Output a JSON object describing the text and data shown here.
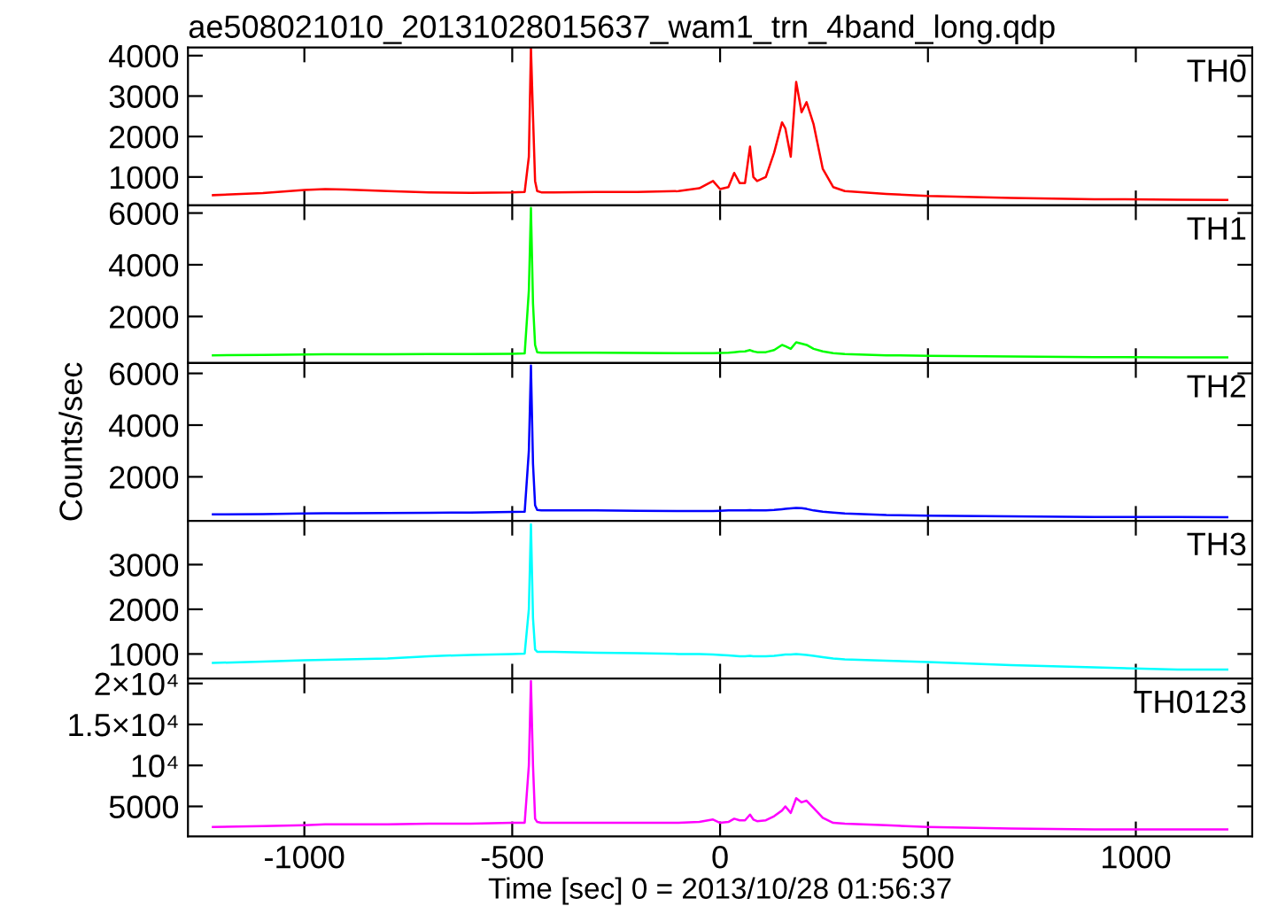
{
  "chart_data": [
    {
      "type": "line",
      "title": "ae508021010_20131028015637_wam1_trn_4band_long.qdp",
      "annotations": [
        "TH0"
      ],
      "xlim": [
        -1280,
        1280
      ],
      "xticks": [
        -1000,
        -500,
        0,
        500,
        1000
      ],
      "ylim": [
        300,
        4200
      ],
      "yticks": [
        1000,
        2000,
        3000,
        4000
      ],
      "tick_labels": "y",
      "x": [
        -1220,
        -1100,
        -1000,
        -950,
        -900,
        -800,
        -700,
        -600,
        -500,
        -470,
        -460,
        -455,
        -450,
        -445,
        -440,
        -430,
        -400,
        -300,
        -200,
        -100,
        -50,
        -17,
        0,
        20,
        34,
        47,
        60,
        72,
        80,
        89,
        110,
        130,
        149,
        157,
        170,
        183,
        196,
        208,
        225,
        247,
        272,
        300,
        400,
        500,
        700,
        900,
        1100,
        1220
      ],
      "series": [
        {
          "color": "#ff0000",
          "values": [
            550,
            600,
            680,
            700,
            690,
            650,
            620,
            610,
            620,
            630,
            1500,
            4200,
            2500,
            900,
            650,
            620,
            620,
            630,
            630,
            650,
            720,
            900,
            700,
            750,
            1100,
            850,
            850,
            1750,
            1000,
            900,
            1000,
            1600,
            2350,
            2200,
            1500,
            3350,
            2600,
            2850,
            2300,
            1200,
            750,
            650,
            580,
            530,
            480,
            450,
            440,
            430
          ]
        }
      ]
    },
    {
      "type": "line",
      "annotations": [
        "TH1"
      ],
      "xlim": [
        -1280,
        1280
      ],
      "xticks": [
        -1000,
        -500,
        0,
        500,
        1000
      ],
      "ylim": [
        200,
        6300
      ],
      "yticks": [
        2000,
        4000,
        6000
      ],
      "tick_labels": "y",
      "x": [
        -1220,
        -1100,
        -1000,
        -950,
        -900,
        -800,
        -700,
        -600,
        -500,
        -470,
        -460,
        -455,
        -450,
        -445,
        -440,
        -430,
        -400,
        -300,
        -200,
        -100,
        -50,
        -17,
        0,
        20,
        34,
        47,
        60,
        72,
        80,
        89,
        110,
        130,
        149,
        157,
        170,
        183,
        196,
        208,
        225,
        247,
        272,
        300,
        400,
        500,
        700,
        900,
        1100,
        1220
      ],
      "series": [
        {
          "color": "#00ff00",
          "values": [
            500,
            510,
            530,
            540,
            540,
            540,
            550,
            550,
            560,
            570,
            3000,
            6200,
            2500,
            900,
            620,
            600,
            600,
            600,
            590,
            580,
            580,
            580,
            590,
            600,
            620,
            640,
            650,
            700,
            650,
            620,
            620,
            700,
            900,
            850,
            750,
            1000,
            950,
            900,
            750,
            650,
            580,
            550,
            500,
            480,
            450,
            430,
            420,
            420
          ]
        }
      ]
    },
    {
      "type": "line",
      "annotations": [
        "TH2"
      ],
      "ylabel": "Counts/sec",
      "xlim": [
        -1280,
        1280
      ],
      "xticks": [
        -1000,
        -500,
        0,
        500,
        1000
      ],
      "ylim": [
        300,
        6400
      ],
      "yticks": [
        2000,
        4000,
        6000
      ],
      "tick_labels": "y",
      "x": [
        -1220,
        -1100,
        -1000,
        -950,
        -900,
        -800,
        -700,
        -600,
        -500,
        -470,
        -460,
        -455,
        -450,
        -445,
        -440,
        -430,
        -400,
        -300,
        -200,
        -100,
        -50,
        -17,
        0,
        20,
        34,
        47,
        60,
        72,
        80,
        89,
        110,
        130,
        149,
        157,
        170,
        183,
        196,
        208,
        225,
        247,
        272,
        300,
        400,
        500,
        700,
        900,
        1100,
        1220
      ],
      "series": [
        {
          "color": "#0000ff",
          "values": [
            550,
            560,
            580,
            590,
            590,
            600,
            610,
            620,
            640,
            650,
            3000,
            6300,
            2500,
            900,
            720,
            700,
            700,
            700,
            690,
            680,
            680,
            680,
            690,
            700,
            700,
            700,
            700,
            710,
            700,
            700,
            700,
            720,
            750,
            760,
            780,
            800,
            790,
            760,
            700,
            650,
            620,
            580,
            520,
            500,
            470,
            450,
            450,
            440
          ]
        }
      ]
    },
    {
      "type": "line",
      "annotations": [
        "TH3"
      ],
      "xlim": [
        -1280,
        1280
      ],
      "xticks": [
        -1000,
        -500,
        0,
        500,
        1000
      ],
      "ylim": [
        450,
        3980
      ],
      "yticks": [
        1000,
        2000,
        3000
      ],
      "tick_labels": "y",
      "x": [
        -1220,
        -1100,
        -1000,
        -950,
        -900,
        -800,
        -700,
        -600,
        -500,
        -470,
        -460,
        -455,
        -450,
        -445,
        -440,
        -430,
        -400,
        -300,
        -200,
        -100,
        -50,
        -17,
        0,
        20,
        34,
        47,
        60,
        72,
        80,
        89,
        110,
        130,
        149,
        157,
        170,
        183,
        196,
        208,
        225,
        247,
        272,
        300,
        400,
        500,
        700,
        900,
        1100,
        1220
      ],
      "series": [
        {
          "color": "#00ffff",
          "values": [
            800,
            830,
            860,
            870,
            880,
            900,
            950,
            980,
            1000,
            1010,
            2000,
            3900,
            1800,
            1100,
            1050,
            1050,
            1050,
            1030,
            1020,
            1000,
            1000,
            990,
            980,
            970,
            960,
            950,
            950,
            960,
            950,
            950,
            950,
            960,
            980,
            990,
            990,
            1000,
            990,
            980,
            960,
            930,
            900,
            880,
            850,
            820,
            750,
            700,
            650,
            650
          ]
        }
      ]
    },
    {
      "type": "line",
      "annotations": [
        "TH0123"
      ],
      "xlabel": "Time [sec] 0 = 2013/10/28 01:56:37",
      "xlim": [
        -1280,
        1280
      ],
      "xticks": [
        -1000,
        -500,
        0,
        500,
        1000
      ],
      "ylim": [
        1350,
        20600
      ],
      "yticks": [
        {
          "value": 5000,
          "label": "5000"
        },
        {
          "value": 10000,
          "label": "10⁴"
        },
        {
          "value": 15000,
          "label": "1.5×10⁴"
        },
        {
          "value": 20000,
          "label": "2×10⁴"
        }
      ],
      "x": [
        -1220,
        -1100,
        -1000,
        -950,
        -900,
        -800,
        -700,
        -600,
        -500,
        -470,
        -460,
        -455,
        -450,
        -445,
        -440,
        -430,
        -400,
        -300,
        -200,
        -100,
        -50,
        -17,
        0,
        20,
        34,
        47,
        60,
        72,
        80,
        89,
        110,
        130,
        149,
        157,
        170,
        183,
        196,
        208,
        225,
        247,
        272,
        300,
        400,
        500,
        700,
        900,
        1100,
        1220
      ],
      "series": [
        {
          "color": "#ff00ff",
          "values": [
            2500,
            2600,
            2700,
            2800,
            2800,
            2800,
            2900,
            2900,
            3000,
            3000,
            10000,
            20300,
            10000,
            3500,
            3100,
            3000,
            3000,
            3000,
            3000,
            3000,
            3100,
            3400,
            3000,
            3100,
            3500,
            3300,
            3300,
            4000,
            3400,
            3200,
            3300,
            3800,
            4500,
            5000,
            4200,
            6000,
            5500,
            5700,
            4800,
            3600,
            3000,
            2900,
            2700,
            2500,
            2300,
            2200,
            2200,
            2200
          ]
        }
      ]
    }
  ]
}
